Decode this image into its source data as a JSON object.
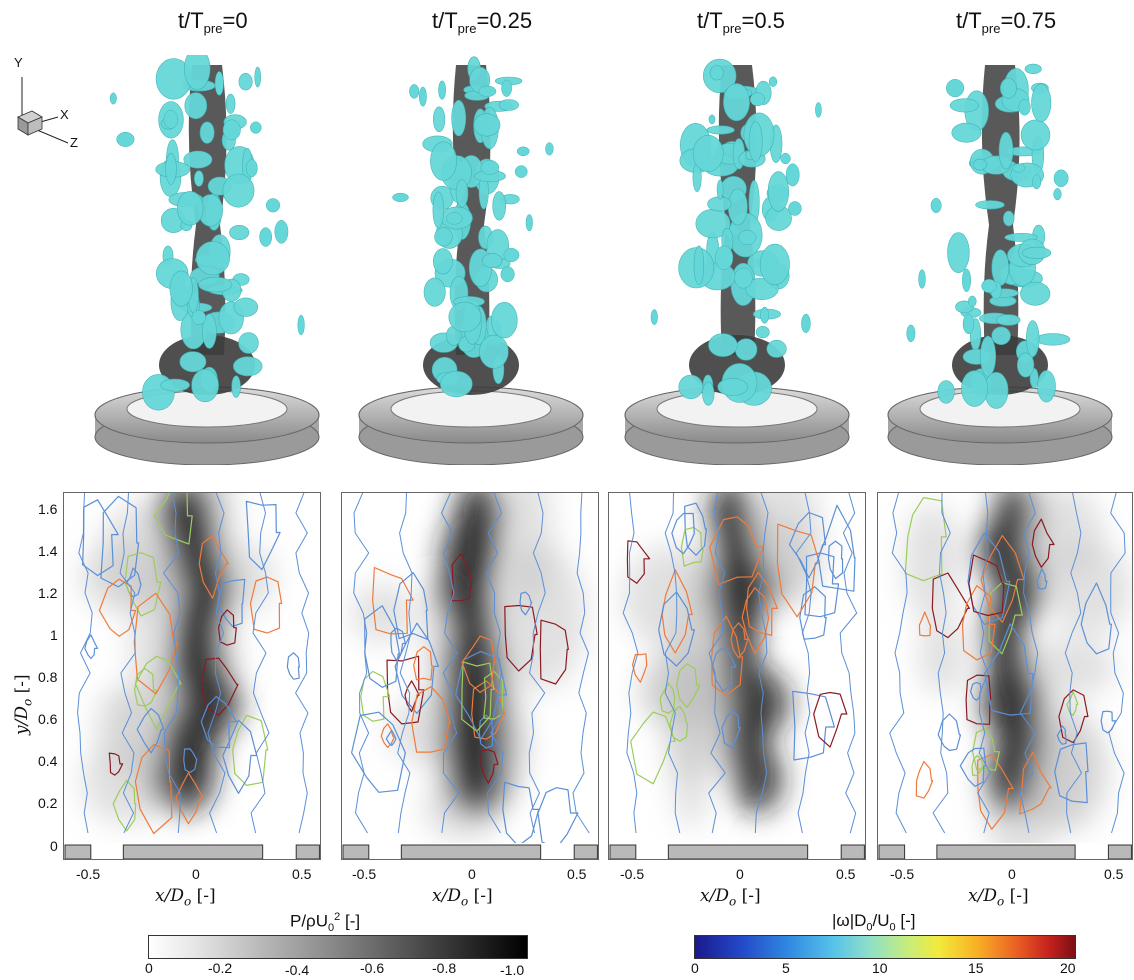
{
  "columns": [
    {
      "t_label": "t/T",
      "t_sub": "pre",
      "t_value": "=0"
    },
    {
      "t_label": "t/T",
      "t_sub": "pre",
      "t_value": "=0.25"
    },
    {
      "t_label": "t/T",
      "t_sub": "pre",
      "t_value": "=0.5"
    },
    {
      "t_label": "t/T",
      "t_sub": "pre",
      "t_value": "=0.75"
    }
  ],
  "axes_triad": {
    "y": "Y",
    "x": "X",
    "z": "Z"
  },
  "y_axis": {
    "label": "y/D",
    "label_sub": "o",
    "label_unit": " [-]",
    "ticks": [
      "0",
      "0.2",
      "0.4",
      "0.6",
      "0.8",
      "1",
      "1.2",
      "1.4",
      "1.6"
    ]
  },
  "x_axis": {
    "label": "x/D",
    "label_sub": "o",
    "label_unit": " [-]",
    "ticks": [
      "-0.5",
      "0",
      "0.5"
    ]
  },
  "colorbar_pressure": {
    "title_main": "P/ρU",
    "title_sub": "0",
    "title_sup": "2",
    "title_unit": " [-]",
    "ticks": [
      "0",
      "-0.2",
      "-0.4",
      "-0.6",
      "-0.8",
      "-1.0"
    ]
  },
  "colorbar_vorticity": {
    "title": "|ω|D",
    "title_sub1": "0",
    "title_mid": "/U",
    "title_sub2": "0",
    "title_unit": " [-]",
    "ticks": [
      "0",
      "5",
      "10",
      "15",
      "20"
    ]
  },
  "colors": {
    "isosurface": "#66d7d8",
    "core": "#3c3c3c",
    "nozzle": "#b9b9b9",
    "contour_low": "#5b8fd6",
    "contour_mid": "#9ccc5a",
    "contour_high": "#ef7a3a",
    "contour_max": "#8a1a22"
  }
}
